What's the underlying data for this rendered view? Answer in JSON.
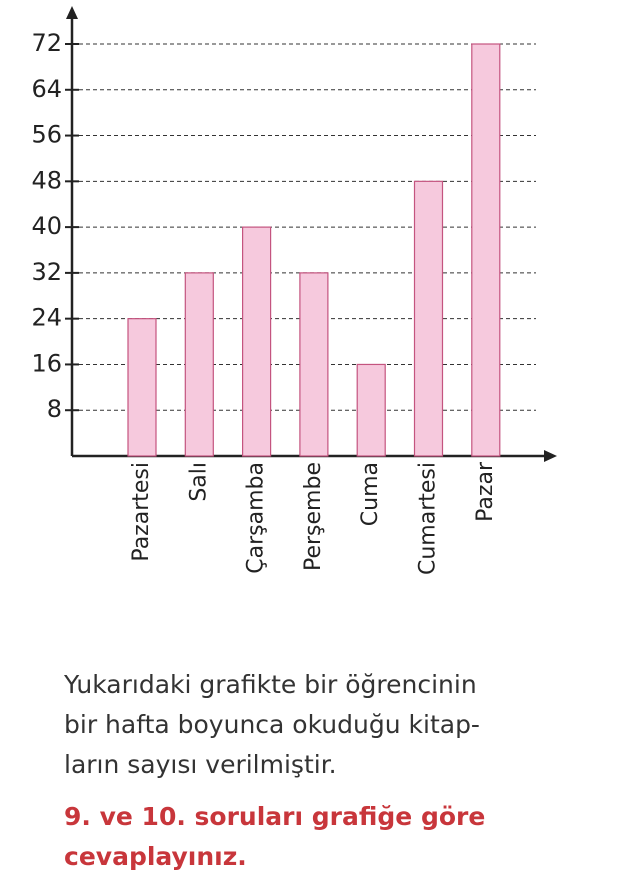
{
  "chart_data": {
    "type": "bar",
    "categories": [
      "Pazartesi",
      "Salı",
      "Çarşamba",
      "Perşembe",
      "Cuma",
      "Cumartesi",
      "Pazar"
    ],
    "values": [
      24,
      32,
      40,
      32,
      16,
      48,
      72
    ],
    "color": "#f6c9dd",
    "ylim": [
      0,
      72
    ],
    "yticks": [
      8,
      16,
      24,
      32,
      40,
      48,
      56,
      64,
      72
    ],
    "grid": true
  },
  "text": {
    "paragraph": [
      "Yukarıdaki grafikte bir öğrencinin",
      "bir hafta boyunca okuduğu kitap-",
      "ların sayısı verilmiştir."
    ],
    "instruction": [
      "9. ve 10. soruları grafiğe göre",
      "cevaplayınız."
    ]
  }
}
